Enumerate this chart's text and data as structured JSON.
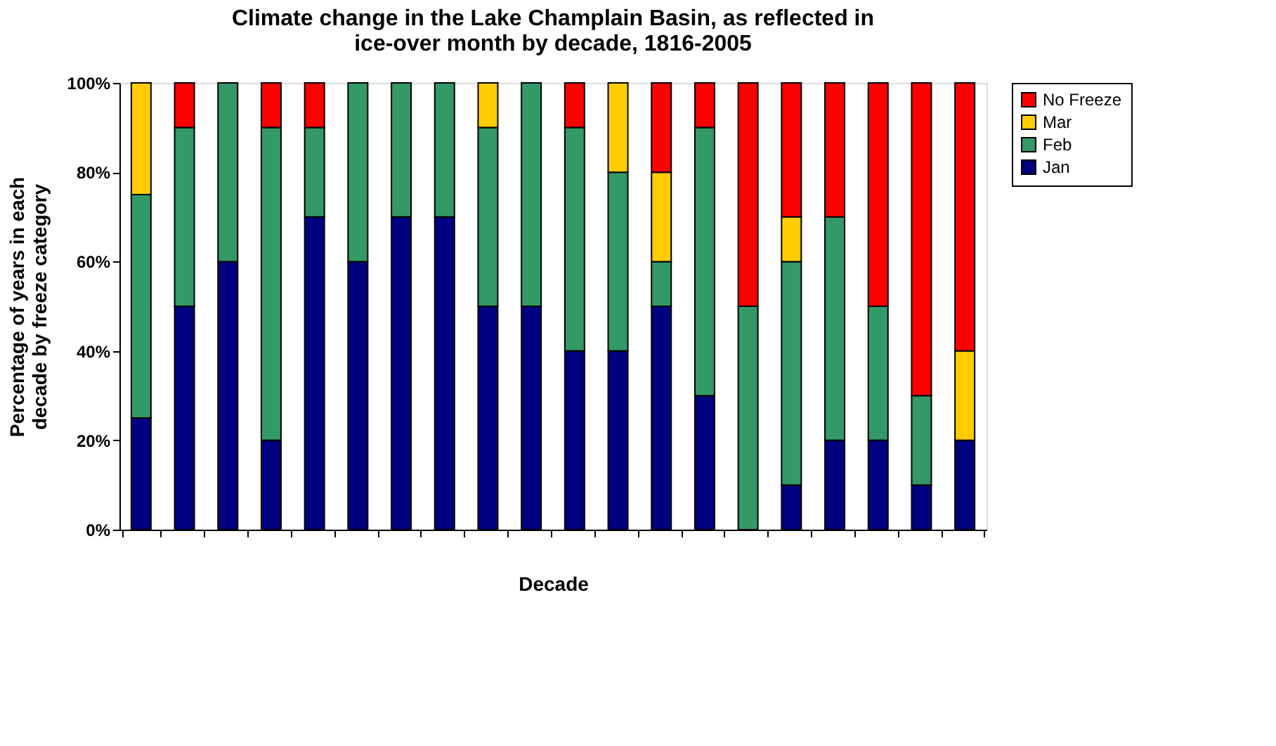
{
  "chart_data": {
    "type": "bar",
    "stacked": true,
    "title": "Climate change in the Lake Champlain Basin, as reflected in ice-over month by decade, 1816-2005",
    "xlabel": "Decade",
    "ylabel": "Percentage of years in each decade by freeze category",
    "categories": [
      null,
      null,
      null,
      null,
      null,
      null,
      null,
      null,
      null,
      null,
      null,
      null,
      null,
      null,
      null,
      null,
      null,
      null,
      null,
      null
    ],
    "series": [
      {
        "name": "Jan",
        "color": "#000080",
        "values": [
          25,
          50,
          60,
          20,
          70,
          60,
          70,
          70,
          50,
          50,
          40,
          40,
          50,
          30,
          0,
          10,
          20,
          20,
          10,
          20
        ]
      },
      {
        "name": "Feb",
        "color": "#339966",
        "values": [
          50,
          40,
          40,
          70,
          20,
          40,
          30,
          30,
          40,
          50,
          50,
          40,
          10,
          60,
          50,
          50,
          50,
          30,
          20,
          0
        ]
      },
      {
        "name": "Mar",
        "color": "#ffcc00",
        "values": [
          25,
          0,
          0,
          0,
          0,
          0,
          0,
          0,
          10,
          0,
          0,
          20,
          20,
          0,
          0,
          10,
          0,
          0,
          0,
          20
        ]
      },
      {
        "name": "No Freeze",
        "color": "#ff0000",
        "values": [
          0,
          10,
          0,
          10,
          10,
          0,
          0,
          0,
          0,
          0,
          10,
          0,
          20,
          10,
          50,
          30,
          30,
          50,
          70,
          60
        ]
      }
    ],
    "ylim": [
      0,
      100
    ],
    "yticks": [
      {
        "value": 0,
        "label": "0%"
      },
      {
        "value": 20,
        "label": "20%"
      },
      {
        "value": 40,
        "label": "40%"
      },
      {
        "value": 60,
        "label": "60%"
      },
      {
        "value": 80,
        "label": "80%"
      },
      {
        "value": 100,
        "label": "100%"
      }
    ],
    "grid": false,
    "legend": "right"
  }
}
